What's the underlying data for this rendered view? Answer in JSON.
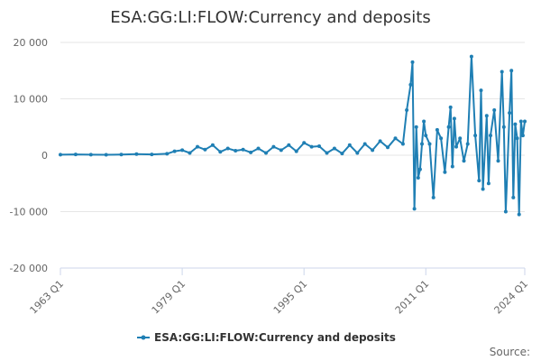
{
  "chart_data": {
    "type": "line",
    "title": "ESA:GG:LI:FLOW:Currency and deposits",
    "legend": "top-center below plot",
    "series": [
      {
        "name": "ESA:GG:LI:FLOW:Currency and deposits",
        "color": "#1f7fb4",
        "x": [
          1963.0,
          1965.0,
          1967.0,
          1969.0,
          1971.0,
          1973.0,
          1975.0,
          1977.0,
          1978.0,
          1979.0,
          1980.0,
          1981.0,
          1982.0,
          1983.0,
          1984.0,
          1985.0,
          1986.0,
          1987.0,
          1988.0,
          1989.0,
          1990.0,
          1991.0,
          1992.0,
          1993.0,
          1994.0,
          1995.0,
          1996.0,
          1997.0,
          1998.0,
          1999.0,
          2000.0,
          2001.0,
          2002.0,
          2003.0,
          2004.0,
          2005.0,
          2006.0,
          2007.0,
          2008.0,
          2008.5,
          2009.0,
          2009.25,
          2009.5,
          2009.75,
          2010.0,
          2010.25,
          2010.5,
          2010.75,
          2011.0,
          2011.5,
          2012.0,
          2012.5,
          2013.0,
          2013.5,
          2014.0,
          2014.25,
          2014.5,
          2014.75,
          2015.0,
          2015.5,
          2016.0,
          2016.5,
          2017.0,
          2017.5,
          2018.0,
          2018.25,
          2018.5,
          2019.0,
          2019.25,
          2019.5,
          2020.0,
          2020.5,
          2021.0,
          2021.25,
          2021.5,
          2022.0,
          2022.25,
          2022.5,
          2022.75,
          2023.0,
          2023.25,
          2023.5,
          2023.75,
          2024.0
        ],
        "values": [
          100,
          150,
          100,
          80,
          120,
          200,
          150,
          250,
          700,
          900,
          400,
          1500,
          1000,
          1800,
          600,
          1200,
          800,
          1000,
          500,
          1200,
          400,
          1500,
          900,
          1800,
          700,
          2200,
          1500,
          1600,
          400,
          1200,
          300,
          1800,
          400,
          2000,
          900,
          2500,
          1400,
          3000,
          2000,
          8000,
          12500,
          16500,
          -9500,
          5000,
          -4000,
          -2500,
          2000,
          6000,
          3500,
          2000,
          -7500,
          4500,
          3000,
          -3000,
          5000,
          8500,
          -2000,
          6500,
          1500,
          3000,
          -1000,
          2000,
          17500,
          3500,
          -4500,
          11500,
          -6000,
          7000,
          -5000,
          3500,
          8000,
          -1000,
          14800,
          5000,
          -10000,
          7500,
          15000,
          -7500,
          5500,
          3000,
          -10500,
          6000,
          3500,
          6000
        ]
      }
    ],
    "xticks": [
      "1963 Q1",
      "1979 Q1",
      "1995 Q1",
      "2011 Q1",
      "2024 Q1"
    ],
    "xtick_positions": [
      1963,
      1979,
      1995,
      2011,
      2024
    ],
    "yticks": [
      "20 000",
      "10 000",
      "0",
      "-10 000",
      "-20 000"
    ],
    "ytick_values": [
      20000,
      10000,
      0,
      -10000,
      -20000
    ],
    "ylim": [
      -20000,
      20000
    ],
    "xlim": [
      1963,
      2024
    ],
    "grid": true,
    "source_label": "Source:"
  }
}
